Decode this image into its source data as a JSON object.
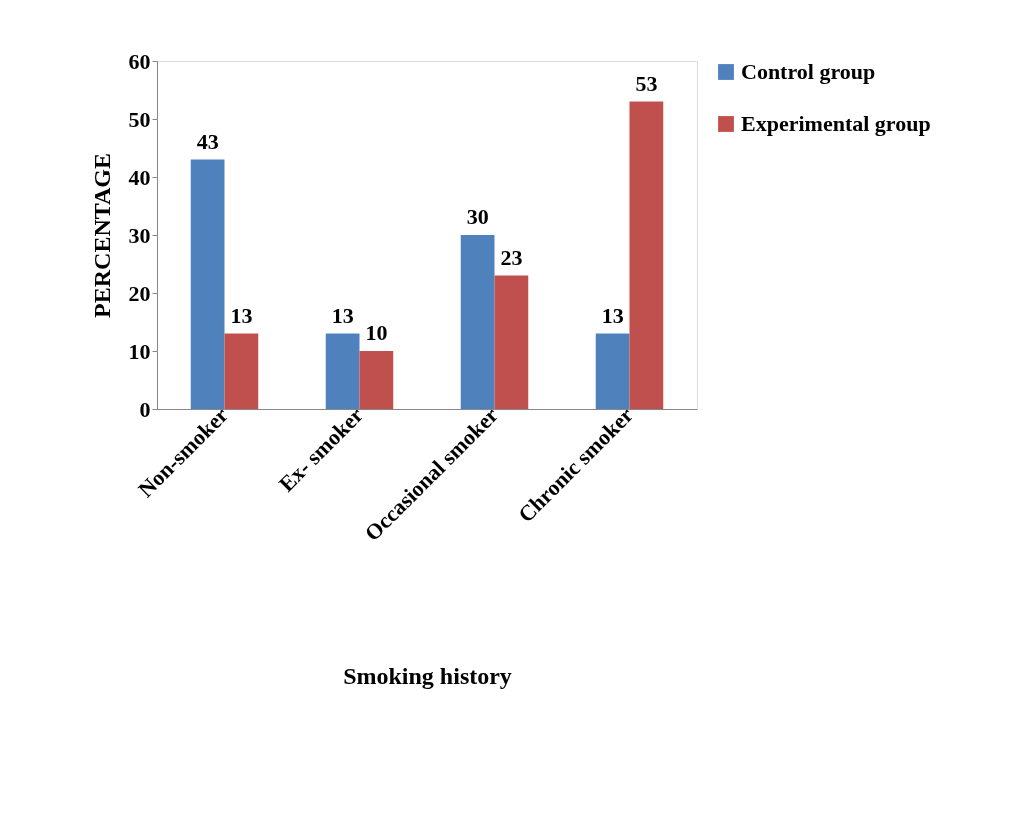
{
  "chart_data": {
    "type": "bar",
    "xlabel": "Smoking history",
    "ylabel": "PERCENTAGE",
    "categories": [
      "Non-smoker",
      "Ex- smoker",
      "Occasional smoker",
      "Chronic smoker"
    ],
    "series": [
      {
        "name": "Control group",
        "color": "#4f81bd",
        "values": [
          43,
          13,
          30,
          13
        ]
      },
      {
        "name": "Experimental group",
        "color": "#c0504d",
        "values": [
          13,
          10,
          23,
          53
        ]
      }
    ],
    "ylim": [
      0,
      60
    ],
    "yticks": [
      0,
      10,
      20,
      30,
      40,
      50,
      60
    ],
    "grid": false,
    "legend": "top right",
    "data_labels": true
  }
}
